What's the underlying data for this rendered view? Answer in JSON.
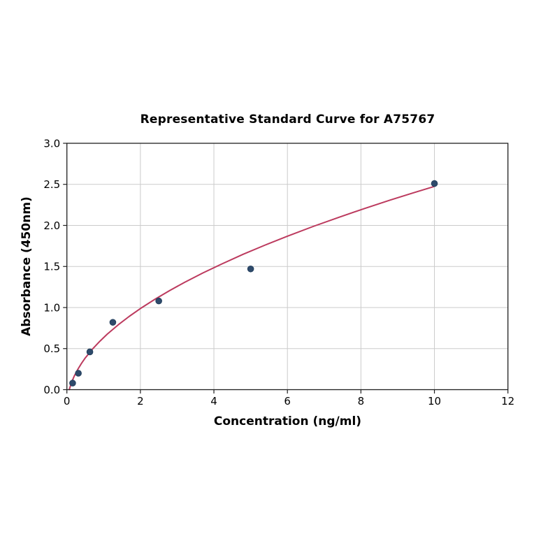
{
  "figure": {
    "background": "#ffffff"
  },
  "chart_data": {
    "type": "scatter",
    "title": "Representative Standard Curve for A75767",
    "xlabel": "Concentration (ng/ml)",
    "ylabel": "Absorbance (450nm)",
    "xlim": [
      0,
      12
    ],
    "ylim": [
      0,
      3.0
    ],
    "grid": true,
    "legend": "none",
    "x_ticks": [
      0,
      2,
      4,
      6,
      8,
      10,
      12
    ],
    "x_tick_labels": [
      "0",
      "2",
      "4",
      "6",
      "8",
      "10",
      "12"
    ],
    "y_ticks": [
      0,
      0.5,
      1.0,
      1.5,
      2.0,
      2.5,
      3.0
    ],
    "y_tick_labels": [
      "0.0",
      "0.5",
      "1.0",
      "1.5",
      "2.0",
      "2.5",
      "3.0"
    ],
    "points": {
      "x": [
        0.156,
        0.3125,
        0.625,
        1.25,
        2.5,
        5,
        10
      ],
      "y": [
        0.08,
        0.2,
        0.46,
        0.82,
        1.08,
        1.47,
        2.51
      ]
    },
    "trend_line": {
      "x": [
        0.065,
        0.1,
        0.15,
        0.2,
        0.3,
        0.4,
        0.5,
        0.7,
        0.9,
        1.1,
        1.4,
        1.7,
        2.0,
        2.4,
        2.8,
        3.2,
        3.7,
        4.2,
        4.8,
        5.4,
        6.0,
        6.7,
        7.4,
        8.1,
        8.8,
        9.4,
        10.0
      ],
      "y": [
        0.001,
        0.053,
        0.114,
        0.165,
        0.25,
        0.322,
        0.386,
        0.496,
        0.591,
        0.677,
        0.791,
        0.894,
        0.988,
        1.102,
        1.208,
        1.306,
        1.421,
        1.528,
        1.649,
        1.762,
        1.869,
        1.987,
        2.099,
        2.206,
        2.309,
        2.393,
        2.475
      ]
    },
    "colors": {
      "point_fill": "#2e4a6b",
      "point_edge": "#24405e",
      "curve": "#bc3a5e",
      "grid": "#cbcbcb",
      "spine": "#1f1f1f",
      "text": "#000000"
    }
  }
}
